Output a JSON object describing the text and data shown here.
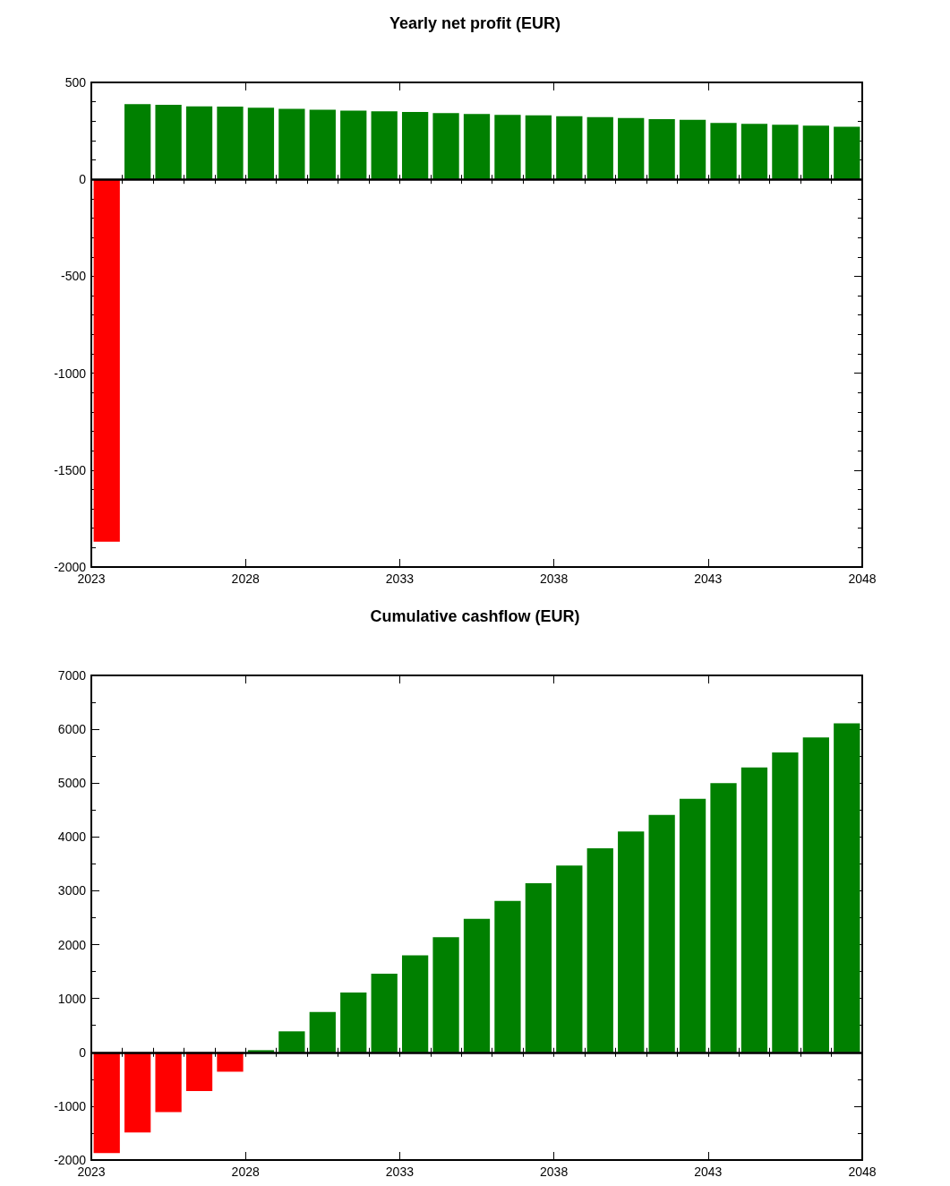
{
  "chart_data": [
    {
      "type": "bar",
      "title": "Yearly net profit (EUR)",
      "x": [
        2023.5,
        2024.5,
        2025.5,
        2026.5,
        2027.5,
        2028.5,
        2029.5,
        2030.5,
        2031.5,
        2032.5,
        2033.5,
        2034.5,
        2035.5,
        2036.5,
        2037.5,
        2038.5,
        2039.5,
        2040.5,
        2041.5,
        2042.5,
        2043.5,
        2044.5,
        2045.5,
        2046.5,
        2047.5
      ],
      "values": [
        -1870,
        388,
        384,
        376,
        375,
        369,
        364,
        359,
        354,
        351,
        347,
        342,
        337,
        333,
        330,
        325,
        321,
        316,
        311,
        307,
        291,
        286,
        282,
        277,
        271
      ],
      "colors": [
        "#ff0000",
        "#008000",
        "#008000",
        "#008000",
        "#008000",
        "#008000",
        "#008000",
        "#008000",
        "#008000",
        "#008000",
        "#008000",
        "#008000",
        "#008000",
        "#008000",
        "#008000",
        "#008000",
        "#008000",
        "#008000",
        "#008000",
        "#008000",
        "#008000",
        "#008000",
        "#008000",
        "#008000",
        "#008000"
      ],
      "xlim": [
        2023,
        2048
      ],
      "xticks": [
        2023,
        2028,
        2033,
        2038,
        2043,
        2048
      ],
      "ylim": [
        -2000,
        500
      ],
      "yticks": [
        -2000,
        -1500,
        -1000,
        -500,
        0,
        500
      ],
      "ref_lines": [
        {
          "axis": "y",
          "value": 0,
          "color": "#000000"
        }
      ],
      "grid": false
    },
    {
      "type": "bar",
      "title": "Cumulative cashflow (EUR)",
      "x": [
        2023.5,
        2024.5,
        2025.5,
        2026.5,
        2027.5,
        2028.5,
        2029.5,
        2030.5,
        2031.5,
        2032.5,
        2033.5,
        2034.5,
        2035.5,
        2036.5,
        2037.5,
        2038.5,
        2039.5,
        2040.5,
        2041.5,
        2042.5,
        2043.5,
        2044.5,
        2045.5,
        2046.5,
        2047.5
      ],
      "values": [
        -1870,
        -1490,
        -1110,
        -720,
        -360,
        40,
        390,
        750,
        1110,
        1460,
        1800,
        2140,
        2480,
        2810,
        3140,
        3470,
        3790,
        4100,
        4410,
        4710,
        5000,
        5290,
        5570,
        5850,
        6110
      ],
      "colors": [
        "#ff0000",
        "#ff0000",
        "#ff0000",
        "#ff0000",
        "#ff0000",
        "#008000",
        "#008000",
        "#008000",
        "#008000",
        "#008000",
        "#008000",
        "#008000",
        "#008000",
        "#008000",
        "#008000",
        "#008000",
        "#008000",
        "#008000",
        "#008000",
        "#008000",
        "#008000",
        "#008000",
        "#008000",
        "#008000",
        "#008000"
      ],
      "xlim": [
        2023,
        2048
      ],
      "xticks": [
        2023,
        2028,
        2033,
        2038,
        2043,
        2048
      ],
      "ylim": [
        -2000,
        7000
      ],
      "yticks": [
        -2000,
        -1000,
        0,
        1000,
        2000,
        3000,
        4000,
        5000,
        6000,
        7000
      ],
      "ref_lines": [
        {
          "axis": "y",
          "value": 0,
          "color": "#000000"
        }
      ],
      "grid": false
    }
  ]
}
